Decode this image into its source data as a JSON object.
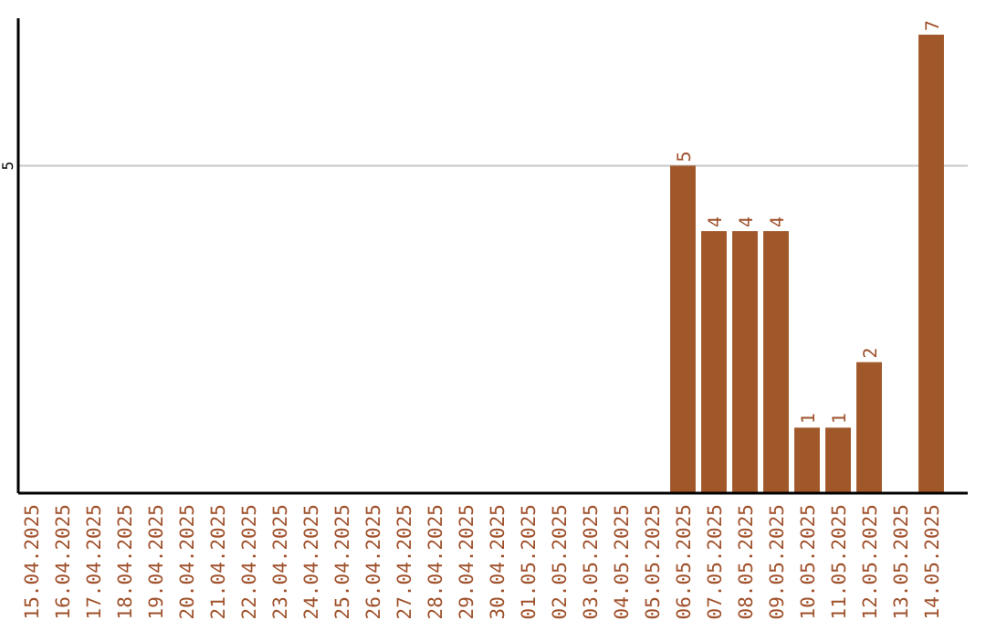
{
  "chart_data": {
    "type": "bar",
    "categories": [
      "15.04.2025",
      "16.04.2025",
      "17.04.2025",
      "18.04.2025",
      "19.04.2025",
      "20.04.2025",
      "21.04.2025",
      "22.04.2025",
      "23.04.2025",
      "24.04.2025",
      "25.04.2025",
      "26.04.2025",
      "27.04.2025",
      "28.04.2025",
      "29.04.2025",
      "30.04.2025",
      "01.05.2025",
      "02.05.2025",
      "03.05.2025",
      "04.05.2025",
      "05.05.2025",
      "06.05.2025",
      "07.05.2025",
      "08.05.2025",
      "09.05.2025",
      "10.05.2025",
      "11.05.2025",
      "12.05.2025",
      "13.05.2025",
      "14.05.2025"
    ],
    "values": [
      null,
      null,
      null,
      null,
      null,
      null,
      null,
      null,
      null,
      null,
      null,
      null,
      null,
      null,
      null,
      null,
      null,
      null,
      null,
      null,
      null,
      5,
      4,
      4,
      4,
      1,
      1,
      2,
      null,
      7
    ],
    "data_labels": true,
    "color": "#a0572a",
    "ylim": [
      0,
      7.25
    ],
    "ref_lines": [
      {
        "axis": "y",
        "value": 5,
        "label": "5",
        "color": "#c8c8c8"
      }
    ]
  }
}
